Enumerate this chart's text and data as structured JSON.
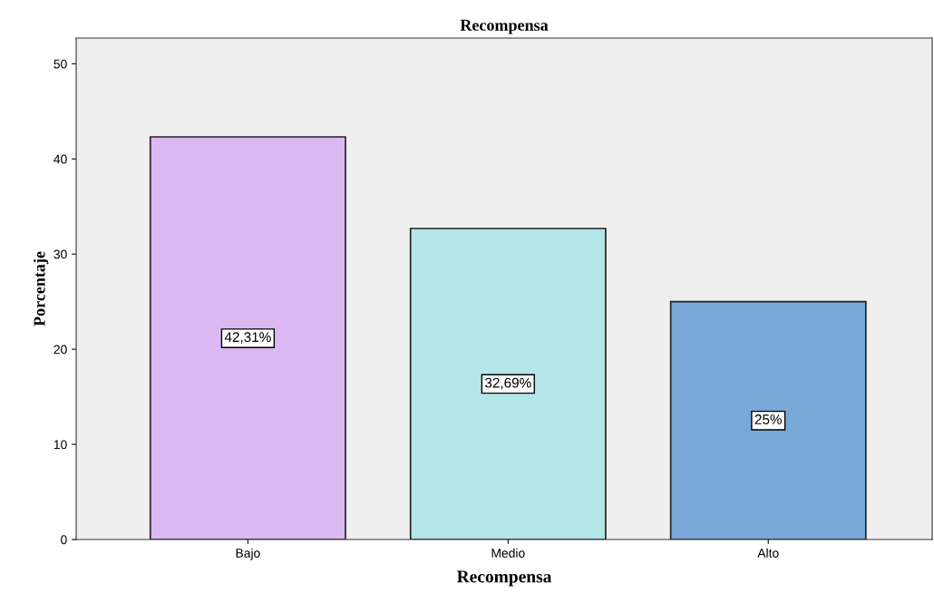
{
  "chart_data": {
    "type": "bar",
    "title": "Recompensa",
    "xlabel": "Recompensa",
    "ylabel": "Porcentaje",
    "categories": [
      "Bajo",
      "Medio",
      "Alto"
    ],
    "values": [
      42.31,
      32.69,
      25
    ],
    "colors": [
      "#dcb8f2",
      "#b4e6e8",
      "#78a8d6"
    ],
    "value_labels": [
      "42,31%",
      "32,69%",
      "25%"
    ],
    "ylim": [
      0,
      52.7
    ],
    "yticks": [
      0,
      10,
      20,
      30,
      40,
      50
    ],
    "grid": false
  }
}
